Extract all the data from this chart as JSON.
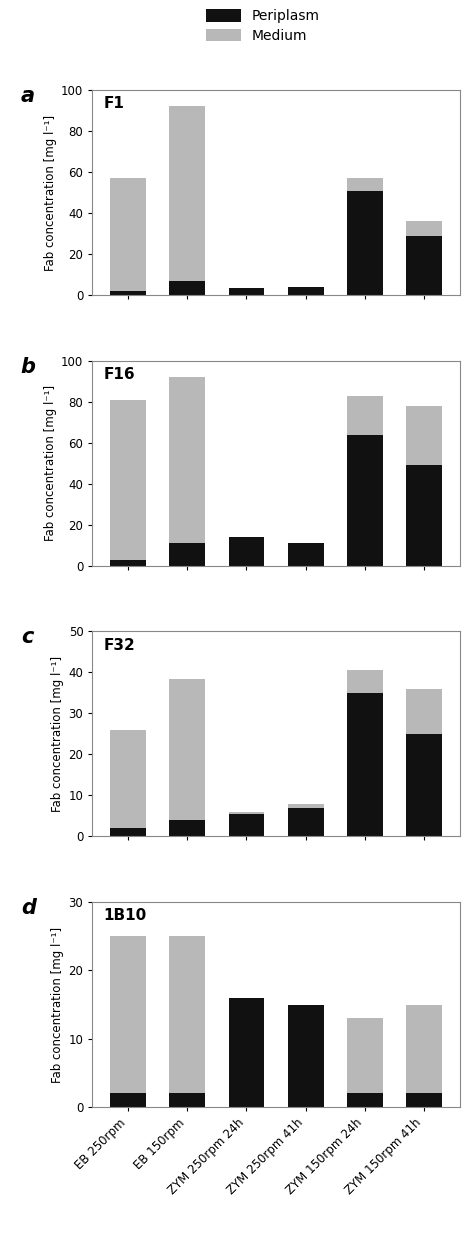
{
  "panels": [
    {
      "label": "a",
      "title": "F1",
      "ylim": [
        0,
        100
      ],
      "yticks": [
        0,
        20,
        40,
        60,
        80,
        100
      ],
      "periplasm": [
        2,
        7,
        3.5,
        4,
        51,
        29
      ],
      "medium": [
        55,
        85,
        0,
        0,
        6,
        7
      ]
    },
    {
      "label": "b",
      "title": "F16",
      "ylim": [
        0,
        100
      ],
      "yticks": [
        0,
        20,
        40,
        60,
        80,
        100
      ],
      "periplasm": [
        3,
        11,
        14,
        11,
        64,
        49
      ],
      "medium": [
        78,
        81,
        0,
        0,
        19,
        29
      ]
    },
    {
      "label": "c",
      "title": "F32",
      "ylim": [
        0,
        50
      ],
      "yticks": [
        0,
        10,
        20,
        30,
        40,
        50
      ],
      "periplasm": [
        2,
        4,
        5.5,
        7,
        35,
        25
      ],
      "medium": [
        24,
        34.5,
        0.5,
        1,
        5.5,
        11
      ]
    },
    {
      "label": "d",
      "title": "1B10",
      "ylim": [
        0,
        30
      ],
      "yticks": [
        0,
        10,
        20,
        30
      ],
      "periplasm": [
        2,
        2,
        16,
        15,
        2,
        2
      ],
      "medium": [
        23,
        23,
        0,
        0,
        11,
        13
      ]
    }
  ],
  "categories": [
    "EB 250rpm",
    "EB 150rpm",
    "ZYM 250rpm 24h",
    "ZYM 250rpm 41h",
    "ZYM 150rpm 24h",
    "ZYM 150rpm 41h"
  ],
  "periplasm_color": "#111111",
  "medium_color": "#b8b8b8",
  "ylabel": "Fab concentration [mg l⁻¹]",
  "legend_periplasm": "Periplasm",
  "legend_medium": "Medium",
  "bar_width": 0.6
}
